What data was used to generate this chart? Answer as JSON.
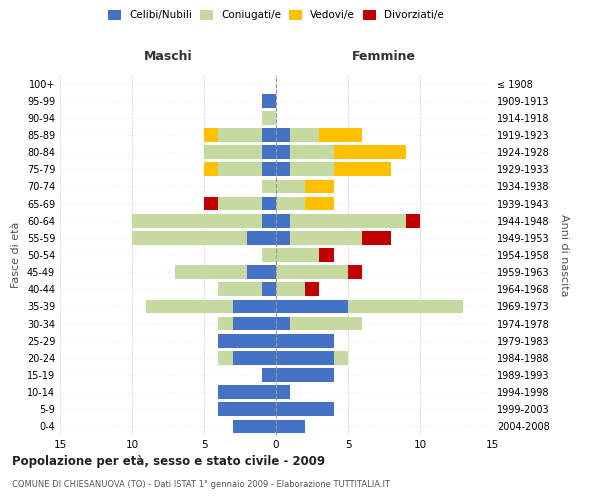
{
  "age_groups": [
    "0-4",
    "5-9",
    "10-14",
    "15-19",
    "20-24",
    "25-29",
    "30-34",
    "35-39",
    "40-44",
    "45-49",
    "50-54",
    "55-59",
    "60-64",
    "65-69",
    "70-74",
    "75-79",
    "80-84",
    "85-89",
    "90-94",
    "95-99",
    "100+"
  ],
  "birth_years": [
    "2004-2008",
    "1999-2003",
    "1994-1998",
    "1989-1993",
    "1984-1988",
    "1979-1983",
    "1974-1978",
    "1969-1973",
    "1964-1968",
    "1959-1963",
    "1954-1958",
    "1949-1953",
    "1944-1948",
    "1939-1943",
    "1934-1938",
    "1929-1933",
    "1924-1928",
    "1919-1923",
    "1914-1918",
    "1909-1913",
    "≤ 1908"
  ],
  "male": {
    "celibi": [
      3,
      4,
      4,
      1,
      3,
      4,
      3,
      3,
      1,
      2,
      0,
      2,
      1,
      1,
      0,
      1,
      1,
      1,
      0,
      1,
      0
    ],
    "coniugati": [
      0,
      0,
      0,
      0,
      1,
      0,
      1,
      6,
      3,
      5,
      1,
      8,
      9,
      3,
      1,
      3,
      4,
      3,
      1,
      0,
      0
    ],
    "vedovi": [
      0,
      0,
      0,
      0,
      0,
      0,
      0,
      0,
      0,
      0,
      0,
      0,
      0,
      0,
      0,
      1,
      0,
      1,
      0,
      0,
      0
    ],
    "divorziati": [
      0,
      0,
      0,
      0,
      0,
      0,
      0,
      0,
      0,
      0,
      0,
      0,
      0,
      1,
      0,
      0,
      0,
      0,
      0,
      0,
      0
    ]
  },
  "female": {
    "nubili": [
      2,
      4,
      1,
      4,
      4,
      4,
      1,
      5,
      0,
      0,
      0,
      1,
      1,
      0,
      0,
      1,
      1,
      1,
      0,
      0,
      0
    ],
    "coniugate": [
      0,
      0,
      0,
      0,
      1,
      0,
      5,
      8,
      2,
      5,
      3,
      5,
      8,
      2,
      2,
      3,
      3,
      2,
      0,
      0,
      0
    ],
    "vedove": [
      0,
      0,
      0,
      0,
      0,
      0,
      0,
      0,
      0,
      0,
      0,
      0,
      0,
      2,
      2,
      4,
      5,
      3,
      0,
      0,
      0
    ],
    "divorziate": [
      0,
      0,
      0,
      0,
      0,
      0,
      0,
      0,
      1,
      1,
      1,
      2,
      1,
      0,
      0,
      0,
      0,
      0,
      0,
      0,
      0
    ]
  },
  "colors": {
    "celibi": "#4472c4",
    "coniugati": "#c5d9a0",
    "vedovi": "#ffc000",
    "divorziati": "#c00000"
  },
  "title": "Popolazione per età, sesso e stato civile - 2009",
  "subtitle": "COMUNE DI CHIESANUOVA (TO) - Dati ISTAT 1° gennaio 2009 - Elaborazione TUTTITALIA.IT",
  "xlabel_left": "Maschi",
  "xlabel_right": "Femmine",
  "ylabel_left": "Fasce di età",
  "ylabel_right": "Anni di nascita",
  "xlim": 15,
  "legend_labels": [
    "Celibi/Nubili",
    "Coniugati/e",
    "Vedovi/e",
    "Divorziati/e"
  ],
  "background_color": "#ffffff",
  "grid_color": "#cccccc"
}
